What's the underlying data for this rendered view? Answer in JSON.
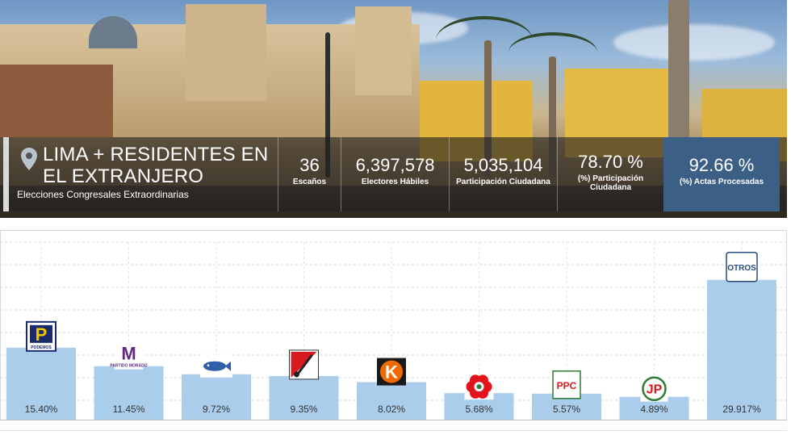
{
  "header": {
    "title_line1": "LIMA + RESIDENTES EN",
    "title_line2": "EL EXTRANJERO",
    "subtitle": "Elecciones Congresales Extraordinarias",
    "icon": "location-pin-icon",
    "stats": [
      {
        "value": "36",
        "label1": "Escaños",
        "label2": ""
      },
      {
        "value": "6,397,578",
        "label1": "Electores Hábiles",
        "label2": ""
      },
      {
        "value": "5,035,104",
        "label1": "Participación Ciudadana",
        "label2": ""
      },
      {
        "value": "78.70 %",
        "label1": "(%) Participación",
        "label2": "Ciudadana"
      },
      {
        "value": "92.66 %",
        "label1": "(%) Actas Procesadas",
        "label2": ""
      }
    ],
    "accent_color": "#3c5f86"
  },
  "chart_data": {
    "type": "bar",
    "categories": [
      "PODEMOS",
      "PARTIDO MORADO",
      "Frente Amplio",
      "Somos Perú",
      "Fuerza Popular",
      "APRA",
      "PPC",
      "Juntos por el Perú",
      "OTROS"
    ],
    "values": [
      15.4,
      11.45,
      9.72,
      9.35,
      8.02,
      5.68,
      5.57,
      4.89,
      29.917
    ],
    "labels": [
      "15.40%",
      "11.45%",
      "9.72%",
      "9.35%",
      "8.02%",
      "5.68%",
      "5.57%",
      "4.89%",
      "29.917%"
    ],
    "bar_color": "#a9cdeb",
    "ylim": [
      0,
      38
    ],
    "grid": true,
    "logos": [
      {
        "kind": "podemos",
        "text": "P",
        "sub": "PODEMOS"
      },
      {
        "kind": "morado",
        "text": "M",
        "sub": "PARTIDO MORADO"
      },
      {
        "kind": "fish",
        "text": "",
        "sub": ""
      },
      {
        "kind": "somos",
        "text": "",
        "sub": ""
      },
      {
        "kind": "fuerza",
        "text": "K",
        "sub": ""
      },
      {
        "kind": "apra",
        "text": "",
        "sub": ""
      },
      {
        "kind": "ppc",
        "text": "PPC",
        "sub": ""
      },
      {
        "kind": "jp",
        "text": "JP",
        "sub": ""
      },
      {
        "kind": "otros",
        "text": "OTROS",
        "sub": ""
      }
    ]
  }
}
